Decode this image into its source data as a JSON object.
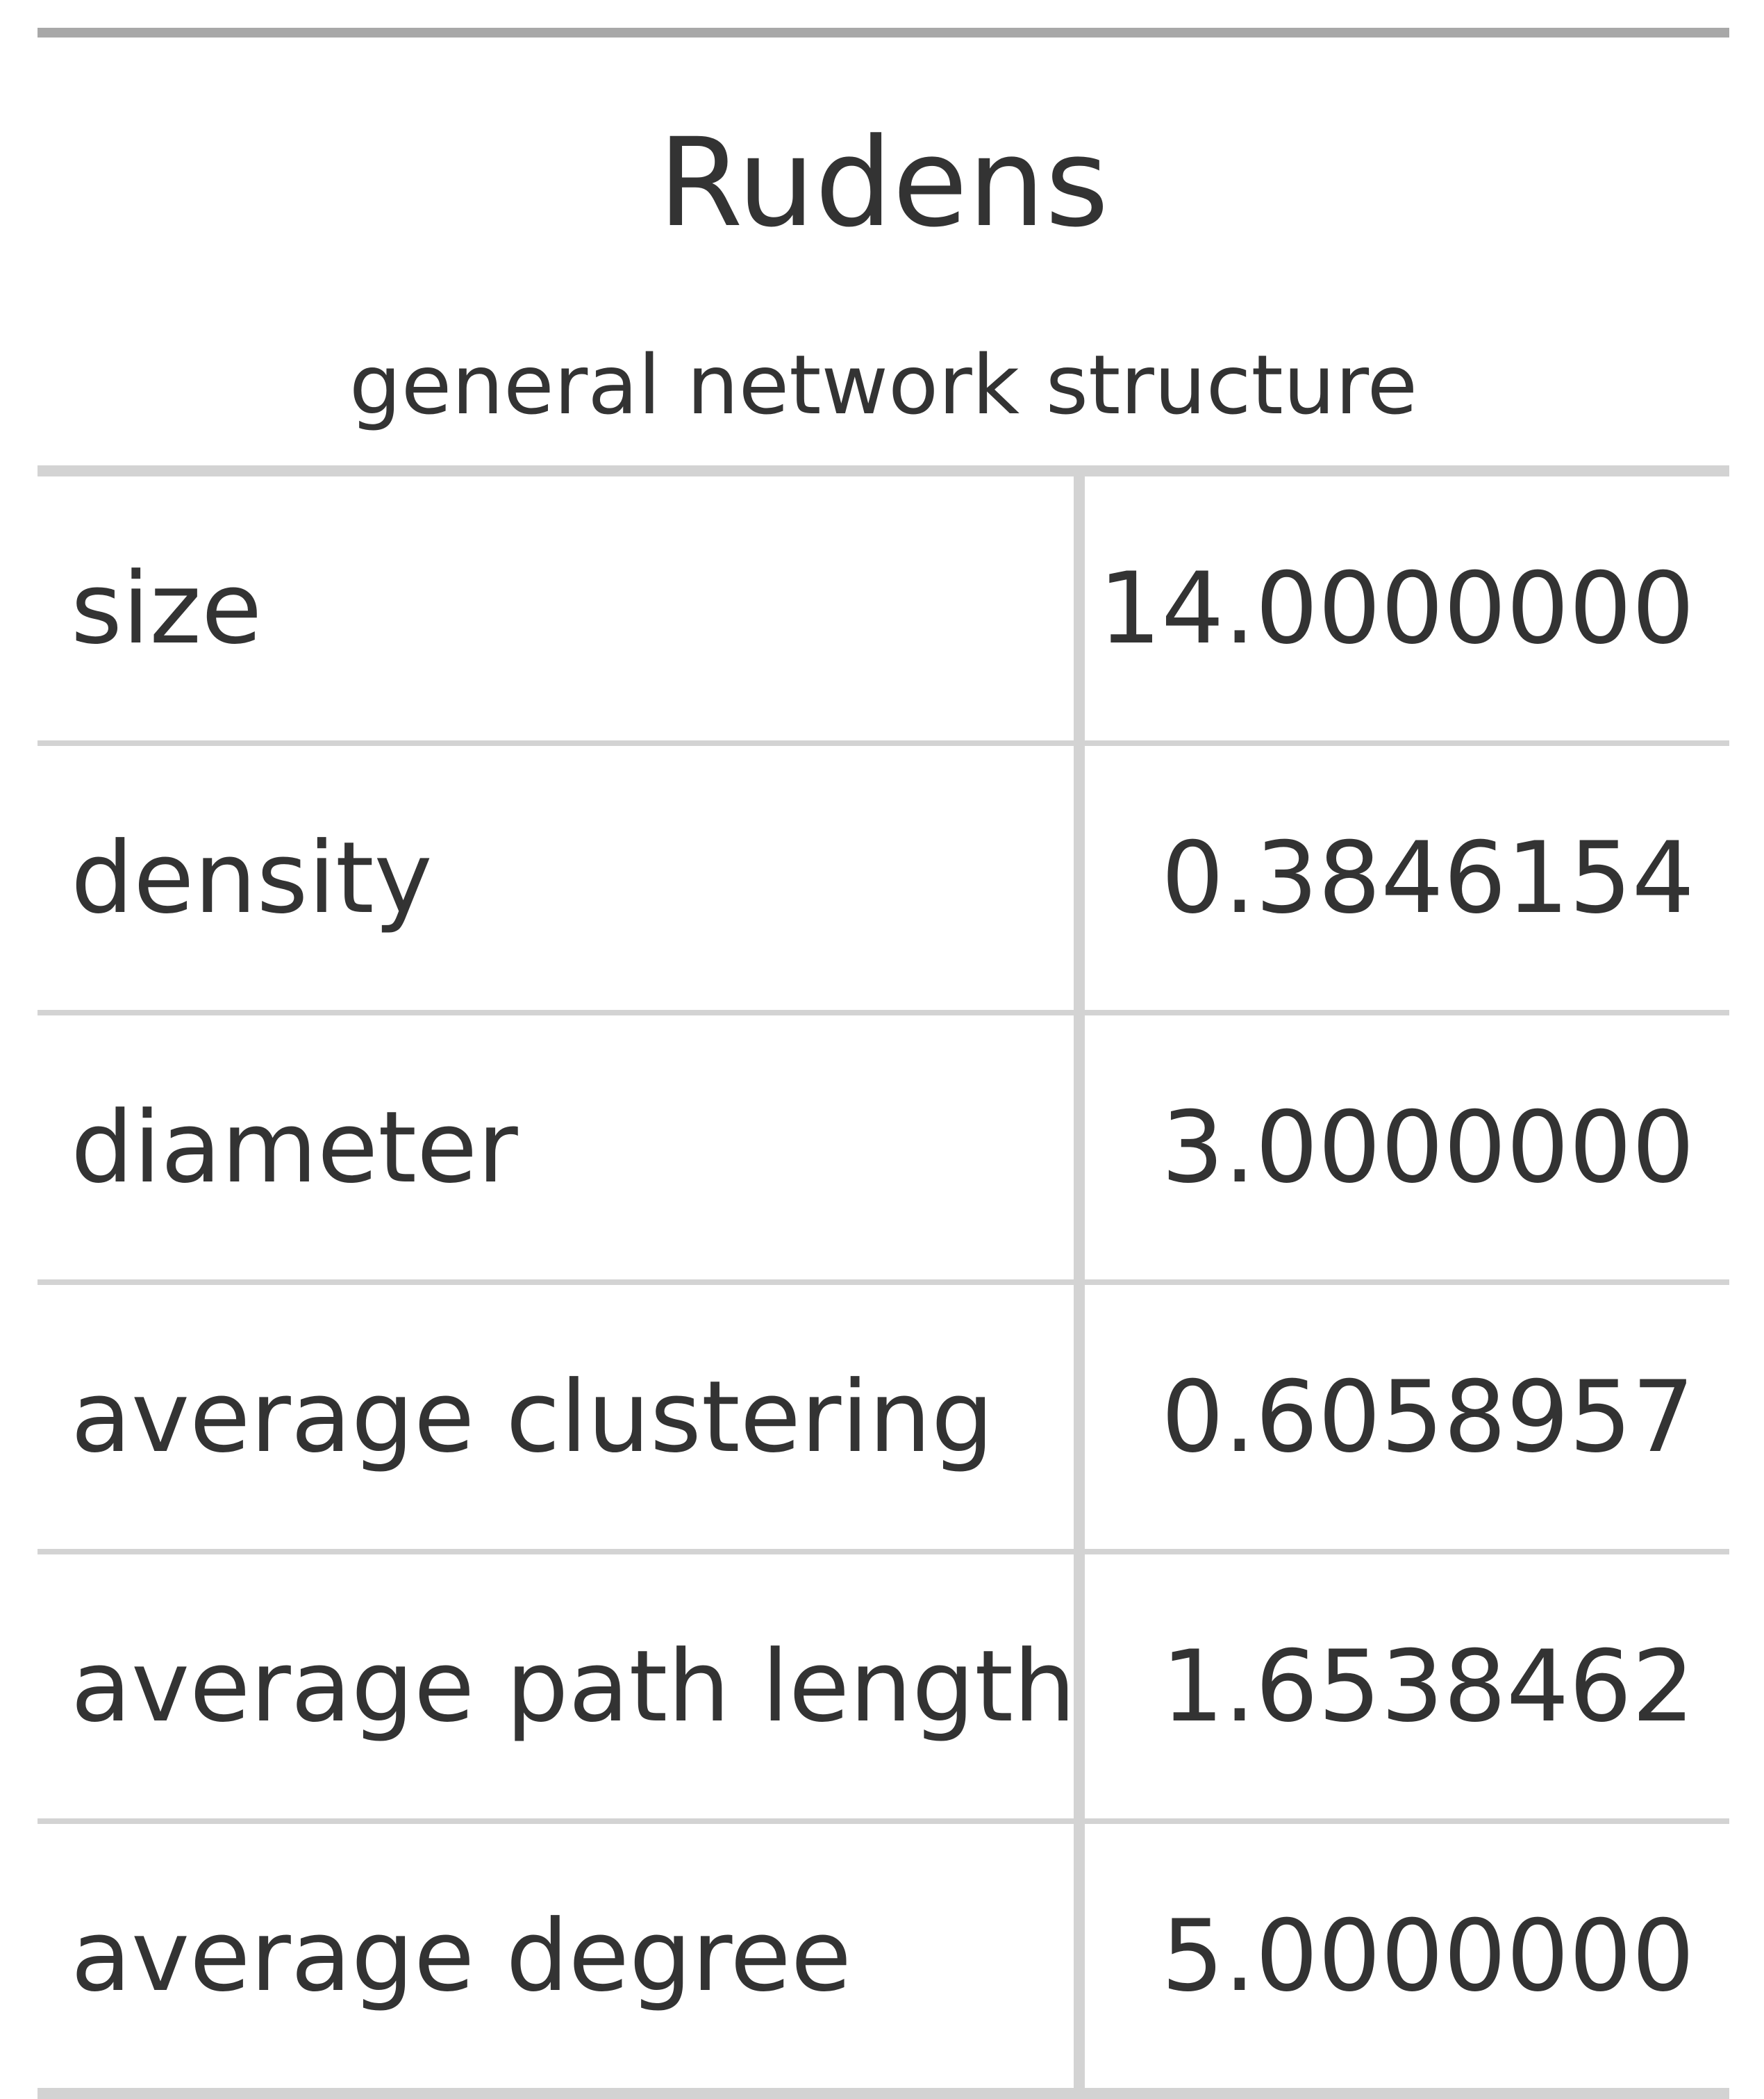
{
  "table": {
    "title": "Rudens",
    "subtitle": "general network structure",
    "rows": [
      {
        "label": "size",
        "value": "14.0000000"
      },
      {
        "label": "density",
        "value": "0.3846154"
      },
      {
        "label": "diameter",
        "value": "3.0000000"
      },
      {
        "label": "average clustering",
        "value": "0.6058957"
      },
      {
        "label": "average path length",
        "value": "1.6538462"
      },
      {
        "label": "average degree",
        "value": "5.0000000"
      }
    ]
  }
}
